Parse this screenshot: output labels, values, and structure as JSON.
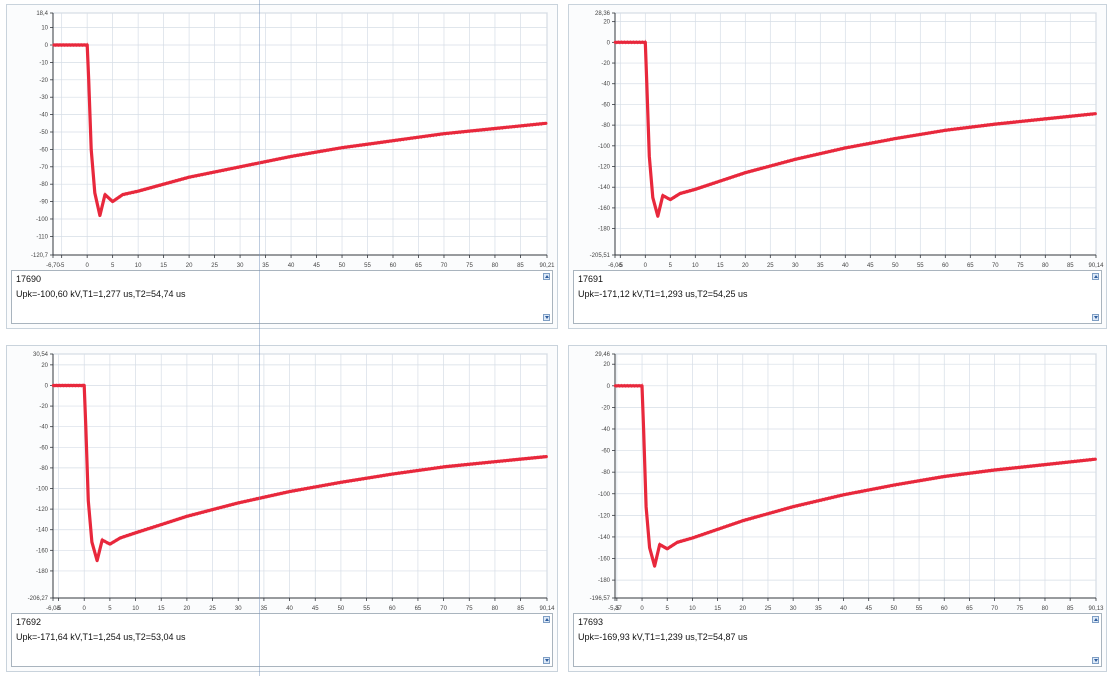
{
  "chart_data": [
    {
      "type": "line",
      "record_id": "17690",
      "parameters": "Upk=-100,60 kV,T1=1,277 us,T2=54,74 us",
      "xlim": [
        -6.7,
        90.21
      ],
      "x_ticks": [
        "-6,70",
        "-5",
        "0",
        "5",
        "10",
        "15",
        "20",
        "25",
        "30",
        "35",
        "40",
        "45",
        "50",
        "55",
        "60",
        "65",
        "70",
        "75",
        "80",
        "85",
        "90,21"
      ],
      "ylim": [
        -120.7,
        18.4
      ],
      "y_ticks": [
        "18,4",
        "10",
        "0",
        "-10",
        "-20",
        "-30",
        "-40",
        "-50",
        "-60",
        "-70",
        "-80",
        "-90",
        "-100",
        "-110",
        "-120,7"
      ],
      "series": [
        {
          "color": "#e8283c",
          "x": [
            -6.5,
            0,
            0.3,
            0.8,
            1.5,
            2.5,
            3.5,
            5,
            7,
            10,
            15,
            20,
            30,
            40,
            50,
            60,
            70,
            80,
            90
          ],
          "y": [
            0,
            0,
            -20,
            -60,
            -85,
            -98,
            -86,
            -90,
            -86,
            -84,
            -80,
            -76,
            -70,
            -64,
            -59,
            -55,
            -51,
            -48,
            -45
          ]
        }
      ]
    },
    {
      "type": "line",
      "record_id": "17691",
      "parameters": "Upk=-171,12 kV,T1=1,293 us,T2=54,25 us",
      "xlim": [
        -6.06,
        90.14
      ],
      "x_ticks": [
        "-6,06",
        "-5",
        "0",
        "5",
        "10",
        "15",
        "20",
        "25",
        "30",
        "35",
        "40",
        "45",
        "50",
        "55",
        "60",
        "65",
        "70",
        "75",
        "80",
        "85",
        "90,14"
      ],
      "ylim": [
        -205.51,
        28.36
      ],
      "y_ticks": [
        "28,36",
        "20",
        "0",
        "-20",
        "-40",
        "-60",
        "-80",
        "-100",
        "-120",
        "-140",
        "-160",
        "-180",
        "-205,51"
      ],
      "series": [
        {
          "color": "#e8283c",
          "x": [
            -6,
            0,
            0.3,
            0.8,
            1.5,
            2.5,
            3.5,
            5,
            7,
            10,
            15,
            20,
            30,
            40,
            50,
            60,
            70,
            80,
            90
          ],
          "y": [
            0,
            0,
            -40,
            -110,
            -150,
            -168,
            -148,
            -152,
            -146,
            -142,
            -134,
            -126,
            -113,
            -102,
            -93,
            -85,
            -79,
            -74,
            -69
          ]
        }
      ]
    },
    {
      "type": "line",
      "record_id": "17692",
      "parameters": "Upk=-171,64 kV,T1=1,254 us,T2=53,04 us",
      "xlim": [
        -6.08,
        90.14
      ],
      "x_ticks": [
        "-6,08",
        "-5",
        "0",
        "5",
        "10",
        "15",
        "20",
        "25",
        "30",
        "35",
        "40",
        "45",
        "50",
        "55",
        "60",
        "65",
        "70",
        "75",
        "80",
        "85",
        "90,14"
      ],
      "ylim": [
        -206.27,
        30.54
      ],
      "y_ticks": [
        "30,54",
        "20",
        "0",
        "-20",
        "-40",
        "-60",
        "-80",
        "-100",
        "-120",
        "-140",
        "-160",
        "-180",
        "-206,27"
      ],
      "series": [
        {
          "color": "#e8283c",
          "x": [
            -6,
            0,
            0.3,
            0.8,
            1.5,
            2.5,
            3.5,
            5,
            7,
            10,
            15,
            20,
            30,
            40,
            50,
            60,
            70,
            80,
            90
          ],
          "y": [
            0,
            0,
            -40,
            -112,
            -152,
            -170,
            -150,
            -154,
            -148,
            -143,
            -135,
            -127,
            -114,
            -103,
            -94,
            -86,
            -79,
            -74,
            -69
          ]
        }
      ]
    },
    {
      "type": "line",
      "record_id": "17693",
      "parameters": "Upk=-169,93 kV,T1=1,239 us,T2=54,87 us",
      "xlim": [
        -5.37,
        90.13
      ],
      "x_ticks": [
        "-5,37",
        "-5",
        "0",
        "5",
        "10",
        "15",
        "20",
        "25",
        "30",
        "35",
        "40",
        "45",
        "50",
        "55",
        "60",
        "65",
        "70",
        "75",
        "80",
        "85",
        "90,13"
      ],
      "ylim": [
        -196.57,
        29.46
      ],
      "y_ticks": [
        "29,46",
        "20",
        "0",
        "-20",
        "-40",
        "-60",
        "-80",
        "-100",
        "-120",
        "-140",
        "-160",
        "-180",
        "-196,57"
      ],
      "series": [
        {
          "color": "#e8283c",
          "x": [
            -5.3,
            0,
            0.3,
            0.8,
            1.5,
            2.5,
            3.5,
            5,
            7,
            10,
            15,
            20,
            30,
            40,
            50,
            60,
            70,
            80,
            90
          ],
          "y": [
            0,
            0,
            -40,
            -112,
            -150,
            -167,
            -147,
            -151,
            -145,
            -141,
            -133,
            -125,
            -112,
            -101,
            -92,
            -84,
            -78,
            -73,
            -68
          ]
        }
      ]
    }
  ],
  "colors": {
    "grid": "#d6dde6",
    "axis": "#33373d",
    "trace": "#e8283c",
    "panel_border": "#c9d3dc"
  },
  "icons": [
    "scroll-up-icon",
    "scroll-down-icon"
  ]
}
